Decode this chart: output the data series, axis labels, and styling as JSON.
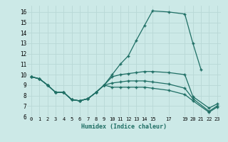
{
  "xlabel": "Humidex (Indice chaleur)",
  "bg_color": "#cce9e7",
  "line_color": "#1e6e64",
  "grid_color": "#b8d8d6",
  "xlim": [
    -0.5,
    23.5
  ],
  "ylim": [
    6.0,
    16.6
  ],
  "xtick_vals": [
    0,
    1,
    2,
    3,
    4,
    5,
    6,
    7,
    8,
    9,
    10,
    11,
    12,
    13,
    14,
    15,
    17,
    19,
    20,
    21,
    22,
    23
  ],
  "xtick_labels": [
    "0",
    "1",
    "2",
    "3",
    "4",
    "5",
    "6",
    "7",
    "8",
    "9",
    "10",
    "11",
    "12",
    "13",
    "14",
    "15",
    "17",
    "19",
    "20",
    "21",
    "22",
    "23"
  ],
  "ytick_vals": [
    6,
    7,
    8,
    9,
    10,
    11,
    12,
    13,
    14,
    15,
    16
  ],
  "line1_x": [
    0,
    1,
    2,
    3,
    4,
    5,
    6,
    7,
    8,
    9,
    10,
    11,
    12,
    13,
    14,
    15,
    17,
    19,
    20,
    21
  ],
  "line1_y": [
    9.8,
    9.6,
    9.0,
    8.3,
    8.3,
    7.6,
    7.5,
    7.7,
    8.3,
    9.0,
    10.0,
    11.0,
    11.8,
    13.3,
    14.7,
    16.1,
    16.0,
    15.8,
    13.0,
    10.5
  ],
  "line2_x": [
    0,
    1,
    2,
    3,
    4,
    5,
    6,
    7,
    8,
    9,
    10,
    11,
    12,
    13,
    14,
    15,
    17,
    19,
    20,
    22,
    23
  ],
  "line2_y": [
    9.8,
    9.6,
    9.0,
    8.3,
    8.3,
    7.6,
    7.5,
    7.7,
    8.3,
    9.0,
    9.8,
    10.0,
    10.1,
    10.2,
    10.3,
    10.3,
    10.2,
    10.0,
    7.9,
    6.8,
    7.2
  ],
  "line3_x": [
    0,
    1,
    2,
    3,
    4,
    5,
    6,
    7,
    8,
    9,
    10,
    11,
    12,
    13,
    14,
    15,
    17,
    19,
    20,
    22,
    23
  ],
  "line3_y": [
    9.8,
    9.6,
    9.0,
    8.3,
    8.3,
    7.6,
    7.5,
    7.7,
    8.3,
    9.0,
    9.2,
    9.3,
    9.4,
    9.4,
    9.4,
    9.3,
    9.1,
    8.7,
    7.7,
    6.5,
    7.0
  ],
  "line4_x": [
    0,
    1,
    2,
    3,
    4,
    5,
    6,
    7,
    8,
    9,
    10,
    11,
    12,
    13,
    14,
    15,
    17,
    19,
    20,
    22,
    23
  ],
  "line4_y": [
    9.8,
    9.6,
    9.0,
    8.3,
    8.3,
    7.6,
    7.5,
    7.7,
    8.3,
    9.0,
    8.8,
    8.8,
    8.8,
    8.8,
    8.8,
    8.7,
    8.5,
    8.1,
    7.5,
    6.4,
    6.9
  ]
}
